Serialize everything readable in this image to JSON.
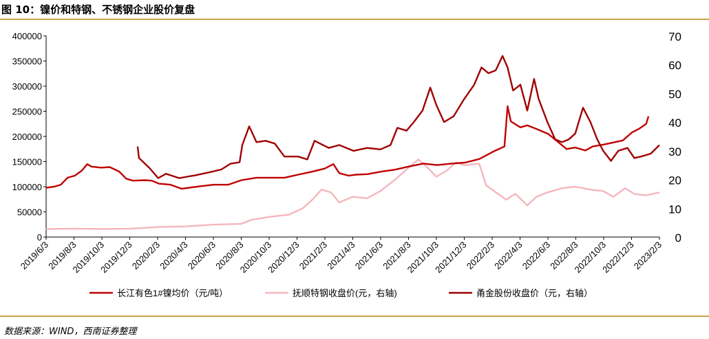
{
  "figure": {
    "title": "图 10：镍价和特钢、不锈钢企业股价复盘",
    "source": "数据来源：WIND，西南证券整理"
  },
  "chart_data": {
    "type": "line",
    "y_left": {
      "min": 0,
      "max": 400000,
      "ticks": [
        0,
        50000,
        100000,
        150000,
        200000,
        250000,
        300000,
        350000,
        400000
      ]
    },
    "y_right": {
      "min": 0,
      "max": 70,
      "ticks": [
        0,
        10,
        20,
        30,
        40,
        50,
        60,
        70
      ]
    },
    "x_range": [
      "2019-06-03",
      "2023-02-03"
    ],
    "x_tick_labels": [
      "2019/6/3",
      "2019/8/3",
      "2019/10/3",
      "2019/12/3",
      "2020/2/3",
      "2020/4/3",
      "2020/6/3",
      "2020/8/3",
      "2020/10/3",
      "2020/12/3",
      "2021/2/3",
      "2021/4/3",
      "2021/6/3",
      "2021/8/3",
      "2021/10/3",
      "2021/12/3",
      "2022/2/3",
      "2022/4/3",
      "2022/6/3",
      "2022/8/3",
      "2022/10/3",
      "2022/12/3",
      "2023/2/3"
    ],
    "legend_position": "bottom",
    "series": [
      {
        "name": "长江有色1#镍均价（元/吨）",
        "axis": "left",
        "color": "#c00000",
        "points": [
          [
            "2019-06-03",
            98000
          ],
          [
            "2019-06-20",
            100000
          ],
          [
            "2019-07-05",
            104000
          ],
          [
            "2019-07-20",
            118000
          ],
          [
            "2019-08-05",
            122000
          ],
          [
            "2019-08-20",
            132000
          ],
          [
            "2019-09-01",
            145000
          ],
          [
            "2019-09-10",
            140000
          ],
          [
            "2019-10-01",
            138000
          ],
          [
            "2019-10-20",
            139000
          ],
          [
            "2019-11-10",
            130000
          ],
          [
            "2019-11-25",
            116000
          ],
          [
            "2019-12-10",
            112000
          ],
          [
            "2020-01-05",
            113000
          ],
          [
            "2020-01-20",
            112000
          ],
          [
            "2020-02-05",
            106000
          ],
          [
            "2020-03-01",
            104000
          ],
          [
            "2020-03-25",
            96000
          ],
          [
            "2020-04-10",
            98000
          ],
          [
            "2020-05-05",
            101000
          ],
          [
            "2020-06-03",
            104000
          ],
          [
            "2020-07-05",
            104000
          ],
          [
            "2020-08-03",
            113000
          ],
          [
            "2020-09-05",
            118000
          ],
          [
            "2020-10-05",
            118000
          ],
          [
            "2020-11-05",
            118000
          ],
          [
            "2020-12-05",
            124000
          ],
          [
            "2021-01-05",
            130000
          ],
          [
            "2021-02-01",
            136000
          ],
          [
            "2021-02-20",
            145000
          ],
          [
            "2021-03-05",
            127000
          ],
          [
            "2021-03-25",
            122000
          ],
          [
            "2021-04-10",
            124000
          ],
          [
            "2021-05-05",
            125000
          ],
          [
            "2021-06-05",
            130000
          ],
          [
            "2021-07-05",
            134000
          ],
          [
            "2021-08-03",
            140000
          ],
          [
            "2021-09-05",
            146000
          ],
          [
            "2021-10-05",
            143000
          ],
          [
            "2021-11-05",
            146000
          ],
          [
            "2021-12-05",
            148000
          ],
          [
            "2022-01-05",
            155000
          ],
          [
            "2022-02-05",
            170000
          ],
          [
            "2022-03-01",
            180000
          ],
          [
            "2022-03-08",
            260000
          ],
          [
            "2022-03-15",
            230000
          ],
          [
            "2022-04-05",
            218000
          ],
          [
            "2022-04-20",
            222000
          ],
          [
            "2022-05-10",
            215000
          ],
          [
            "2022-06-05",
            205000
          ],
          [
            "2022-06-25",
            190000
          ],
          [
            "2022-07-15",
            175000
          ],
          [
            "2022-08-03",
            178000
          ],
          [
            "2022-08-25",
            172000
          ],
          [
            "2022-09-10",
            180000
          ],
          [
            "2022-10-05",
            184000
          ],
          [
            "2022-10-25",
            188000
          ],
          [
            "2022-11-15",
            192000
          ],
          [
            "2022-12-05",
            208000
          ],
          [
            "2022-12-20",
            215000
          ],
          [
            "2023-01-05",
            225000
          ],
          [
            "2023-01-10",
            240000
          ]
        ]
      },
      {
        "name": "抚顺特钢收盘价(元，右轴)",
        "axis": "right",
        "color": "#f4b6bd",
        "points": [
          [
            "2019-06-03",
            2.8
          ],
          [
            "2019-08-03",
            2.9
          ],
          [
            "2019-10-03",
            2.8
          ],
          [
            "2019-12-03",
            2.9
          ],
          [
            "2020-02-03",
            3.5
          ],
          [
            "2020-04-03",
            3.7
          ],
          [
            "2020-06-03",
            4.3
          ],
          [
            "2020-08-03",
            4.6
          ],
          [
            "2020-08-25",
            6.0
          ],
          [
            "2020-10-03",
            7.0
          ],
          [
            "2020-11-15",
            7.8
          ],
          [
            "2020-12-15",
            10.0
          ],
          [
            "2021-01-05",
            13.0
          ],
          [
            "2021-01-25",
            16.5
          ],
          [
            "2021-02-15",
            15.5
          ],
          [
            "2021-03-05",
            12.0
          ],
          [
            "2021-04-03",
            14.0
          ],
          [
            "2021-05-05",
            13.5
          ],
          [
            "2021-06-03",
            16.0
          ],
          [
            "2021-07-05",
            20.0
          ],
          [
            "2021-08-03",
            24.0
          ],
          [
            "2021-08-25",
            27.0
          ],
          [
            "2021-09-15",
            24.0
          ],
          [
            "2021-10-03",
            21.0
          ],
          [
            "2021-10-25",
            23.0
          ],
          [
            "2021-11-15",
            26.0
          ],
          [
            "2021-12-03",
            25.0
          ],
          [
            "2022-01-05",
            25.5
          ],
          [
            "2022-01-20",
            18.0
          ],
          [
            "2022-02-15",
            15.0
          ],
          [
            "2022-03-05",
            13.0
          ],
          [
            "2022-03-25",
            15.0
          ],
          [
            "2022-04-20",
            11.0
          ],
          [
            "2022-05-10",
            14.0
          ],
          [
            "2022-06-03",
            15.5
          ],
          [
            "2022-07-05",
            17.0
          ],
          [
            "2022-08-03",
            17.5
          ],
          [
            "2022-09-05",
            16.5
          ],
          [
            "2022-10-03",
            16.0
          ],
          [
            "2022-10-25",
            14.0
          ],
          [
            "2022-11-20",
            17.0
          ],
          [
            "2022-12-10",
            15.0
          ],
          [
            "2023-01-05",
            14.5
          ],
          [
            "2023-02-03",
            15.5
          ]
        ]
      },
      {
        "name": "甬金股份收盘价（元，右轴）",
        "axis": "right",
        "color": "#a00000",
        "points": [
          [
            "2019-12-20",
            31.5
          ],
          [
            "2019-12-23",
            27.5
          ],
          [
            "2020-01-15",
            24.0
          ],
          [
            "2020-02-03",
            20.5
          ],
          [
            "2020-02-20",
            22.0
          ],
          [
            "2020-03-20",
            20.5
          ],
          [
            "2020-04-25",
            21.5
          ],
          [
            "2020-05-25",
            22.5
          ],
          [
            "2020-06-20",
            23.5
          ],
          [
            "2020-07-10",
            25.5
          ],
          [
            "2020-07-30",
            26.0
          ],
          [
            "2020-08-05",
            32.0
          ],
          [
            "2020-08-20",
            38.5
          ],
          [
            "2020-09-05",
            33.0
          ],
          [
            "2020-09-25",
            33.5
          ],
          [
            "2020-10-15",
            32.5
          ],
          [
            "2020-11-05",
            28.0
          ],
          [
            "2020-12-05",
            28.0
          ],
          [
            "2020-12-25",
            27.0
          ],
          [
            "2021-01-10",
            33.5
          ],
          [
            "2021-02-10",
            31.0
          ],
          [
            "2021-03-05",
            32.0
          ],
          [
            "2021-04-05",
            30.0
          ],
          [
            "2021-05-05",
            31.0
          ],
          [
            "2021-06-03",
            30.5
          ],
          [
            "2021-06-25",
            32.0
          ],
          [
            "2021-07-10",
            38.0
          ],
          [
            "2021-07-30",
            37.0
          ],
          [
            "2021-08-15",
            40.0
          ],
          [
            "2021-09-03",
            44.0
          ],
          [
            "2021-09-20",
            52.0
          ],
          [
            "2021-10-03",
            46.0
          ],
          [
            "2021-10-20",
            40.0
          ],
          [
            "2021-11-10",
            42.0
          ],
          [
            "2021-12-03",
            48.0
          ],
          [
            "2021-12-25",
            53.0
          ],
          [
            "2022-01-10",
            59.0
          ],
          [
            "2022-01-25",
            57.0
          ],
          [
            "2022-02-10",
            58.0
          ],
          [
            "2022-02-25",
            63.0
          ],
          [
            "2022-03-08",
            59.0
          ],
          [
            "2022-03-20",
            51.0
          ],
          [
            "2022-04-05",
            53.0
          ],
          [
            "2022-04-20",
            44.0
          ],
          [
            "2022-05-05",
            55.0
          ],
          [
            "2022-05-15",
            48.0
          ],
          [
            "2022-06-03",
            40.0
          ],
          [
            "2022-06-20",
            34.0
          ],
          [
            "2022-07-05",
            33.0
          ],
          [
            "2022-07-20",
            34.0
          ],
          [
            "2022-08-03",
            36.0
          ],
          [
            "2022-08-20",
            45.0
          ],
          [
            "2022-09-05",
            40.0
          ],
          [
            "2022-09-20",
            34.0
          ],
          [
            "2022-10-03",
            30.0
          ],
          [
            "2022-10-20",
            26.5
          ],
          [
            "2022-11-05",
            30.0
          ],
          [
            "2022-11-25",
            31.0
          ],
          [
            "2022-12-10",
            27.5
          ],
          [
            "2022-12-25",
            28.0
          ],
          [
            "2023-01-15",
            29.0
          ],
          [
            "2023-02-03",
            32.0
          ]
        ]
      }
    ]
  }
}
